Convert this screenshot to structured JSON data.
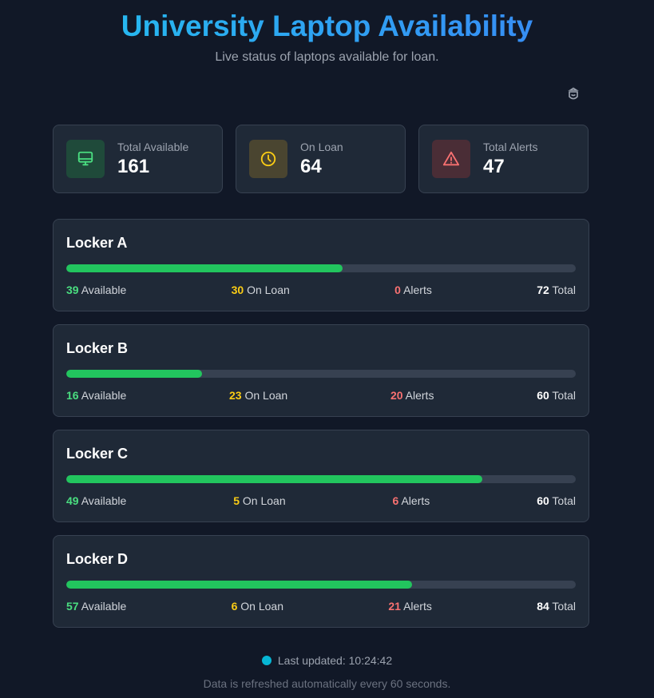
{
  "header": {
    "title": "University Laptop Availability",
    "subtitle": "Live status of laptops available for loan.",
    "settings_icon": "shield-gear-icon"
  },
  "colors": {
    "available": "#22c55e",
    "on_loan": "#facc15",
    "alerts": "#f87171",
    "accent": "#06b6d4"
  },
  "summary": [
    {
      "label": "Total Available",
      "value": "161",
      "icon": "monitor-icon"
    },
    {
      "label": "On Loan",
      "value": "64",
      "icon": "clock-icon"
    },
    {
      "label": "Total Alerts",
      "value": "47",
      "icon": "warning-icon"
    }
  ],
  "lockers": [
    {
      "name": "Locker A",
      "available": "39",
      "on_loan": "30",
      "alerts": "0",
      "total": "72",
      "percent": 54.2
    },
    {
      "name": "Locker B",
      "available": "16",
      "on_loan": "23",
      "alerts": "20",
      "total": "60",
      "percent": 26.7
    },
    {
      "name": "Locker C",
      "available": "49",
      "on_loan": "5",
      "alerts": "6",
      "total": "60",
      "percent": 81.7
    },
    {
      "name": "Locker D",
      "available": "57",
      "on_loan": "6",
      "alerts": "21",
      "total": "84",
      "percent": 67.9
    }
  ],
  "labels": {
    "available": "Available",
    "on_loan": "On Loan",
    "alerts": "Alerts",
    "total": "Total"
  },
  "footer": {
    "last_updated_label": "Last updated:",
    "last_updated_time": "10:24:42",
    "note": "Data is refreshed automatically every 60 seconds."
  }
}
